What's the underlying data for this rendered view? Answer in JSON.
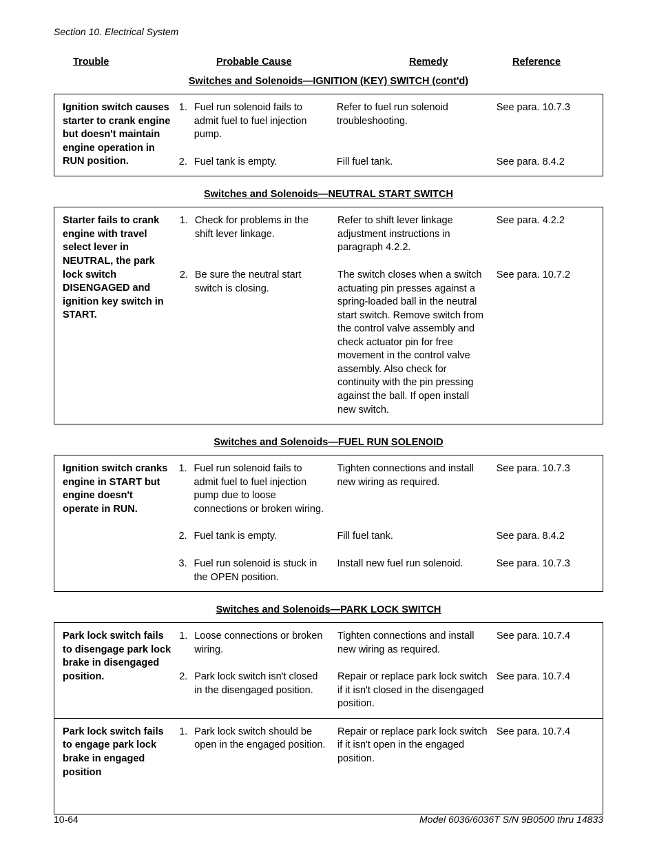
{
  "page": {
    "section_header": "Section 10.   Electrical System",
    "footer_left": "10-64",
    "footer_right": "Model 6036/6036T S/N 9B0500 thru 14833",
    "columns": {
      "trouble": "Trouble",
      "cause": "Probable Cause",
      "remedy": "Remedy",
      "reference": "Reference"
    }
  },
  "sections": [
    {
      "title": "Switches and Solenoids—IGNITION (KEY) SWITCH (cont'd)",
      "groups": [
        {
          "trouble": "Ignition switch causes starter to crank engine but doesn't maintain engine operation in RUN position.",
          "rows": [
            {
              "num": "1.",
              "cause": "Fuel run solenoid  fails to admit fuel to fuel injection pump.",
              "remedy": "Refer to fuel run solenoid troubleshooting.",
              "ref": "See para. 10.7.3"
            },
            {
              "num": "2.",
              "cause": "Fuel tank is empty.",
              "remedy": "Fill fuel tank.",
              "ref": "See para. 8.4.2"
            }
          ]
        }
      ]
    },
    {
      "title": "Switches and Solenoids—NEUTRAL START SWITCH",
      "groups": [
        {
          "trouble": "Starter fails to crank engine with travel select lever in NEUTRAL, the park lock switch DISENGAGED and ignition key switch in START.",
          "rows": [
            {
              "num": "1.",
              "cause": "Check for problems in the shift lever linkage.",
              "remedy": "Refer to shift lever linkage adjustment instructions in paragraph 4.2.2.",
              "ref": "See para. 4.2.2"
            },
            {
              "num": "2.",
              "cause": "Be sure the neutral start switch is closing.",
              "remedy": "The switch closes when a switch actuating pin presses against a spring-loaded ball in the neutral start switch. Remove switch from the control valve assembly and check actuator pin for free movement in the control valve assembly. Also check for continuity with the pin pressing against the ball. If open install new switch.",
              "ref": "See para. 10.7.2"
            }
          ]
        }
      ]
    },
    {
      "title": "Switches and Solenoids—FUEL RUN SOLENOID",
      "groups": [
        {
          "trouble": "Ignition switch cranks engine in START but engine doesn't operate in RUN.",
          "rows": [
            {
              "num": "1.",
              "cause": "Fuel run solenoid fails to admit fuel to fuel injection pump due to loose connections or broken wiring.",
              "remedy": "Tighten connections and install new wiring as required.",
              "ref": "See para. 10.7.3"
            },
            {
              "num": "2.",
              "cause": "Fuel tank is empty.",
              "remedy": "Fill fuel tank.",
              "ref": "See para. 8.4.2"
            },
            {
              "num": "3.",
              "cause": "Fuel run solenoid is stuck in the OPEN position.",
              "remedy": "Install new fuel run solenoid.",
              "ref": "See para. 10.7.3"
            }
          ]
        }
      ]
    },
    {
      "title": "Switches and Solenoids—PARK LOCK SWITCH",
      "groups": [
        {
          "trouble": "Park lock switch fails to disengage park lock brake in disengaged position.",
          "rows": [
            {
              "num": "1.",
              "cause": "Loose connections or broken wiring.",
              "remedy": "Tighten connections and install new wiring as required.",
              "ref": "See para. 10.7.4"
            },
            {
              "num": "2.",
              "cause": "Park lock switch isn't closed in the disengaged position.",
              "remedy": "Repair or replace park lock switch if it isn't closed in the disengaged position.",
              "ref": "See para. 10.7.4"
            }
          ]
        },
        {
          "trouble": "Park lock switch fails to engage park lock brake in engaged position",
          "rows": [
            {
              "num": "1.",
              "cause": "Park lock switch should be open in the engaged position.",
              "remedy": "Repair or replace park lock switch if it isn't open in the engaged position.",
              "ref": "See para. 10.7.4"
            }
          ],
          "extra_pad": true
        }
      ]
    }
  ]
}
